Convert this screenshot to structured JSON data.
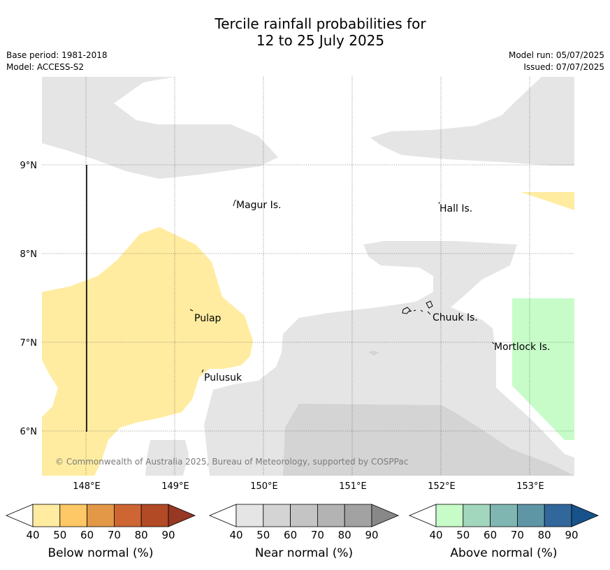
{
  "title": {
    "line1": "Tercile rainfall probabilities for",
    "line2": "12 to 25 July 2025"
  },
  "meta": {
    "base_period": "Base period: 1981-2018",
    "model": "Model: ACCESS-S2",
    "model_run": "Model run: 05/07/2025",
    "issued": "Issued: 07/07/2025"
  },
  "map": {
    "lon_range": [
      147.5,
      153.5
    ],
    "lat_range": [
      5.5,
      10.0
    ],
    "lon_ticks": [
      "148°E",
      "149°E",
      "150°E",
      "151°E",
      "152°E",
      "153°E"
    ],
    "lat_ticks": [
      "9°N",
      "8°N",
      "7°N",
      "6°N"
    ],
    "places": [
      {
        "name": "Magur Is."
      },
      {
        "name": "Hall Is."
      },
      {
        "name": "Pulap"
      },
      {
        "name": "Chuuk Is."
      },
      {
        "name": "Mortlock Is."
      },
      {
        "name": "Pulusuk"
      }
    ],
    "copyright": "© Commonwealth of Australia 2025, Bureau of Meteorology, supported by COSPPac"
  },
  "legends": [
    {
      "label": "Below normal (%)",
      "ticks": [
        "40",
        "50",
        "60",
        "70",
        "80",
        "90"
      ],
      "colors": [
        "#ffeca0",
        "#fdc865",
        "#e39847",
        "#cd6633",
        "#b24a26",
        "#963823"
      ]
    },
    {
      "label": "Near normal (%)",
      "ticks": [
        "40",
        "50",
        "60",
        "70",
        "80",
        "90"
      ],
      "colors": [
        "#e5e5e5",
        "#d4d4d4",
        "#c4c4c4",
        "#b3b3b3",
        "#a2a2a2",
        "#888888"
      ]
    },
    {
      "label": "Above normal (%)",
      "ticks": [
        "40",
        "50",
        "60",
        "70",
        "80",
        "90"
      ],
      "colors": [
        "#c7fcc9",
        "#a3d7bd",
        "#80b6b2",
        "#5e96a6",
        "#32679c",
        "#18528a"
      ]
    }
  ]
}
